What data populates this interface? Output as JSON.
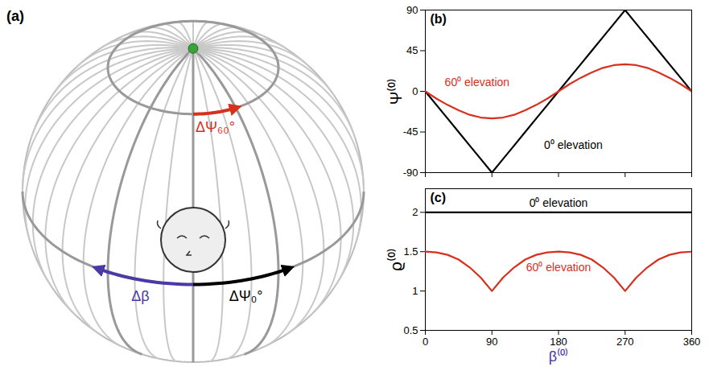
{
  "diagram": {
    "title": "(a)",
    "labels": {
      "delta_psi_60": "ΔΨ₆₀°",
      "delta_beta": "Δβ",
      "delta_psi_0": "ΔΨ₀°"
    }
  },
  "chart_data": [
    {
      "type": "line",
      "title": "(b)",
      "x": [
        0,
        15,
        30,
        45,
        60,
        75,
        90,
        105,
        120,
        135,
        150,
        165,
        180,
        195,
        210,
        225,
        240,
        255,
        270,
        285,
        300,
        315,
        330,
        345,
        360
      ],
      "series": [
        {
          "name": "0⁰ elevation",
          "color": "#000000",
          "label_x": 200,
          "label_y": -60,
          "values": [
            0,
            -15,
            -30,
            -45,
            -60,
            -75,
            -90,
            -75,
            -60,
            -45,
            -30,
            -15,
            0,
            15,
            30,
            45,
            60,
            75,
            90,
            75,
            60,
            45,
            30,
            15,
            0
          ]
        },
        {
          "name": "60⁰ elevation",
          "color": "#d7301f",
          "label_x": 70,
          "label_y": 10,
          "values": [
            0,
            -8,
            -15,
            -21,
            -26,
            -29,
            -30,
            -29,
            -26,
            -21,
            -15,
            -8,
            0,
            8,
            15,
            21,
            26,
            29,
            30,
            29,
            26,
            21,
            15,
            8,
            0
          ]
        }
      ],
      "xlim": [
        0,
        360
      ],
      "xticks": [
        0,
        90,
        180,
        270,
        360
      ],
      "ylim": [
        -90,
        90
      ],
      "yticks": [
        -90,
        -45,
        0,
        45,
        90
      ],
      "ylabel": "Ψ⁽⁰⁾",
      "tick_labels": "y",
      "grid": false
    },
    {
      "type": "line",
      "title": "(c)",
      "x": [
        0,
        15,
        30,
        45,
        60,
        75,
        90,
        105,
        120,
        135,
        150,
        165,
        180,
        195,
        210,
        225,
        240,
        255,
        270,
        285,
        300,
        315,
        330,
        345,
        360
      ],
      "series": [
        {
          "name": "0⁰ elevation",
          "color": "#000000",
          "label_x": 180,
          "label_y": 2.12,
          "values": [
            2,
            2,
            2,
            2,
            2,
            2,
            2,
            2,
            2,
            2,
            2,
            2,
            2,
            2,
            2,
            2,
            2,
            2,
            2,
            2,
            2,
            2,
            2,
            2,
            2
          ]
        },
        {
          "name": "60⁰ elevation",
          "color": "#d7301f",
          "label_x": 180,
          "label_y": 1.3,
          "values": [
            1.5,
            1.49,
            1.46,
            1.4,
            1.3,
            1.17,
            1,
            1.17,
            1.3,
            1.4,
            1.46,
            1.49,
            1.5,
            1.49,
            1.46,
            1.4,
            1.3,
            1.17,
            1,
            1.17,
            1.3,
            1.4,
            1.46,
            1.49,
            1.5
          ]
        }
      ],
      "xlim": [
        0,
        360
      ],
      "xticks": [
        0,
        90,
        180,
        270,
        360
      ],
      "ylim": [
        0.5,
        2.3
      ],
      "yticks": [
        0.5,
        1,
        1.5,
        2
      ],
      "xlabel": "β⁽⁰⁾",
      "ylabel": "ϱ⁽⁰⁾",
      "tick_labels": true,
      "grid": false
    }
  ]
}
